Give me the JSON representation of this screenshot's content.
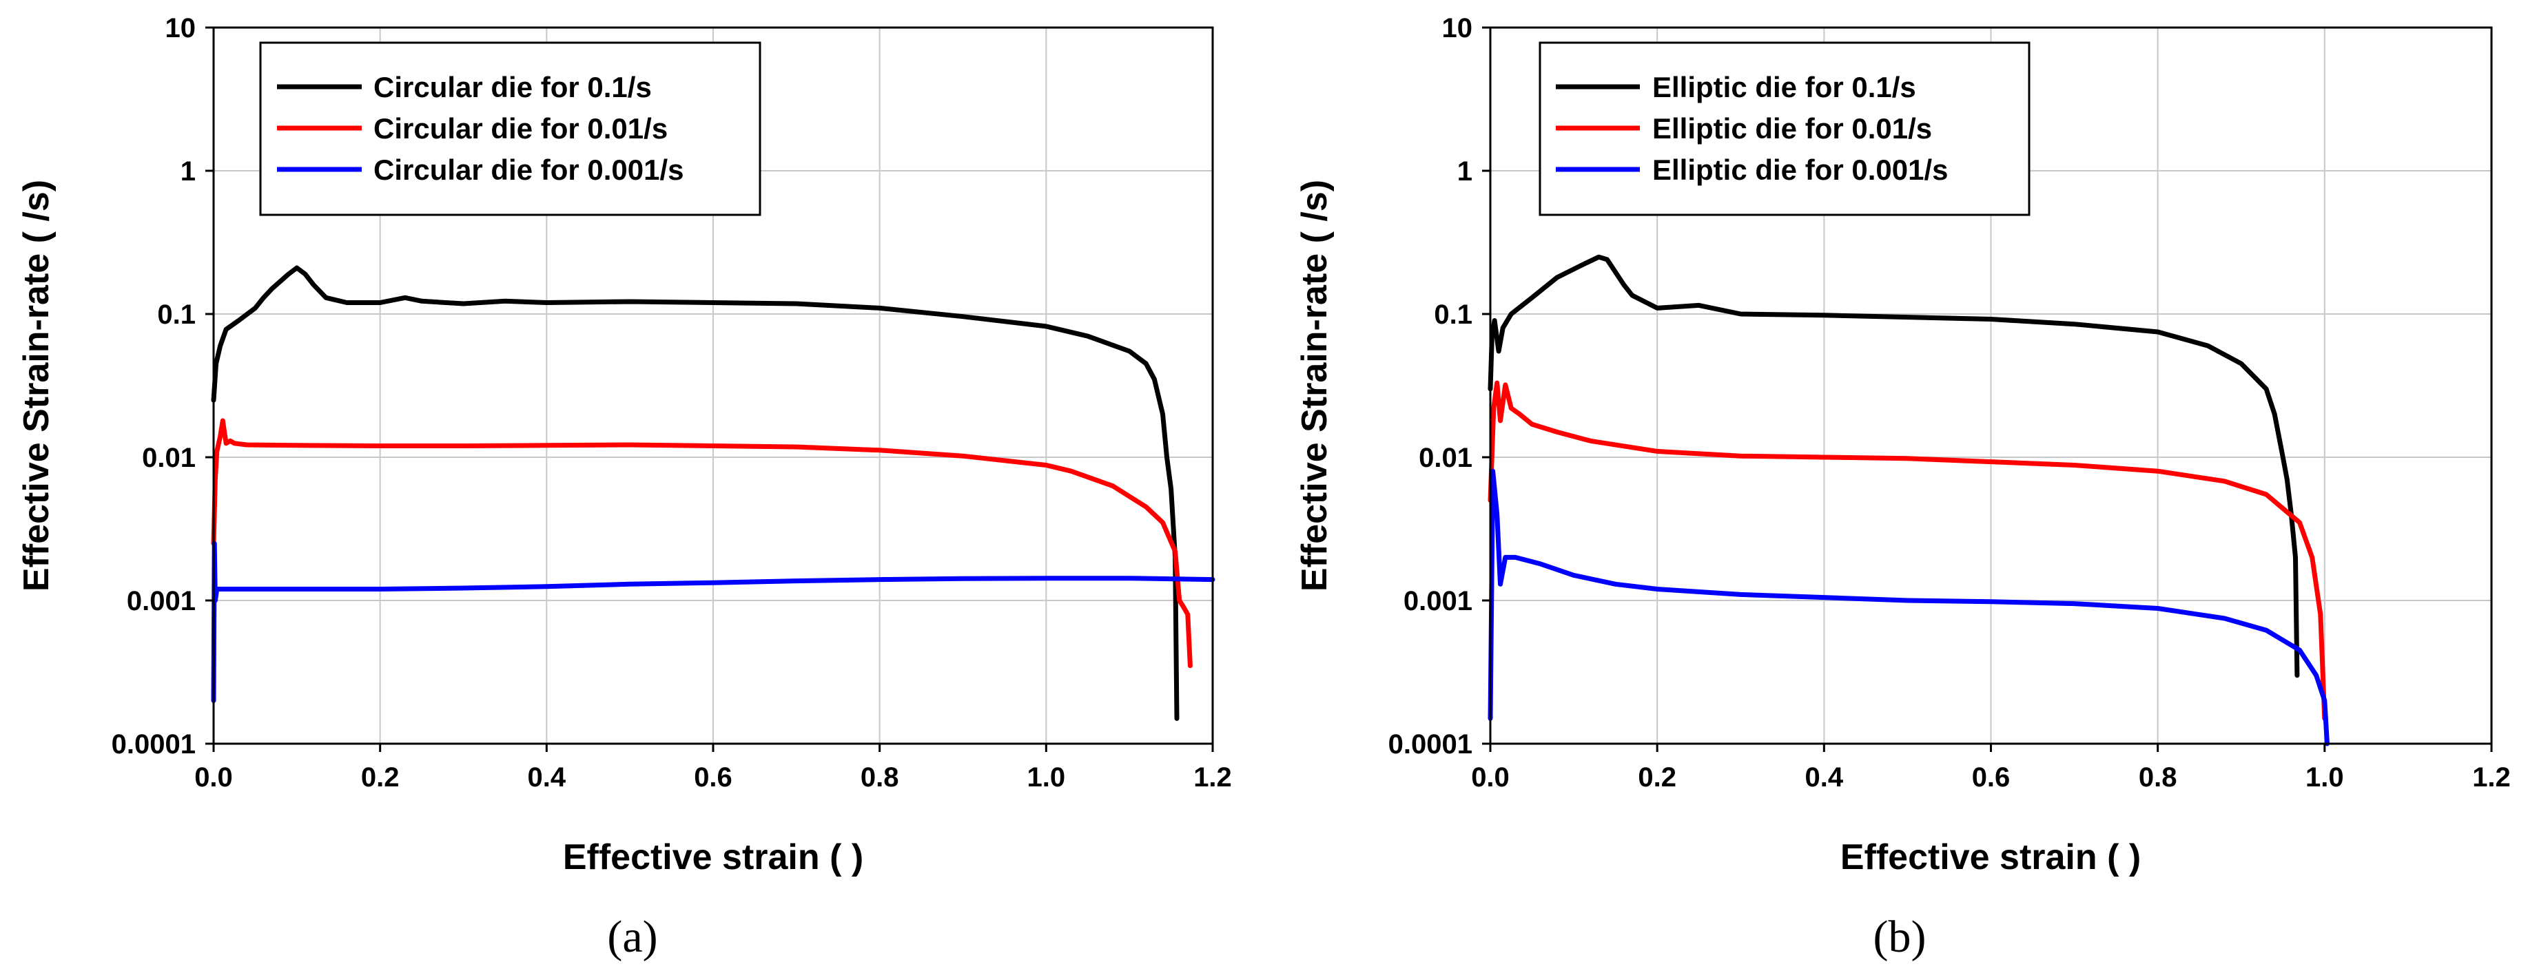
{
  "chart_data": [
    {
      "type": "line",
      "panel": "a",
      "caption": "(a)",
      "xlabel": "Effective strain (   )",
      "ylabel": "Effective Strain-rate ( /s)",
      "xlim": [
        0,
        1.2
      ],
      "ylim": [
        0.0001,
        10
      ],
      "yscale": "log",
      "grid": true,
      "legend_position": "top-left",
      "x_ticks": [
        "0.0",
        "0.2",
        "0.4",
        "0.6",
        "0.8",
        "1.0",
        "1.2"
      ],
      "y_ticks": [
        "0.0001",
        "0.001",
        "0.01",
        "0.1",
        "1",
        "10"
      ],
      "series": [
        {
          "name": "Circular die for 0.1/s",
          "color": "#000000",
          "points": [
            [
              0,
              0.025
            ],
            [
              0.003,
              0.045
            ],
            [
              0.008,
              0.06
            ],
            [
              0.015,
              0.078
            ],
            [
              0.03,
              0.09
            ],
            [
              0.05,
              0.11
            ],
            [
              0.06,
              0.13
            ],
            [
              0.07,
              0.15
            ],
            [
              0.09,
              0.19
            ],
            [
              0.1,
              0.21
            ],
            [
              0.11,
              0.19
            ],
            [
              0.12,
              0.16
            ],
            [
              0.135,
              0.13
            ],
            [
              0.16,
              0.12
            ],
            [
              0.2,
              0.12
            ],
            [
              0.23,
              0.13
            ],
            [
              0.25,
              0.123
            ],
            [
              0.3,
              0.118
            ],
            [
              0.35,
              0.123
            ],
            [
              0.4,
              0.12
            ],
            [
              0.5,
              0.122
            ],
            [
              0.6,
              0.12
            ],
            [
              0.7,
              0.118
            ],
            [
              0.8,
              0.11
            ],
            [
              0.9,
              0.096
            ],
            [
              1.0,
              0.082
            ],
            [
              1.05,
              0.07
            ],
            [
              1.1,
              0.055
            ],
            [
              1.12,
              0.045
            ],
            [
              1.13,
              0.035
            ],
            [
              1.14,
              0.02
            ],
            [
              1.145,
              0.01
            ],
            [
              1.15,
              0.006
            ],
            [
              1.155,
              0.002
            ],
            [
              1.157,
              0.00015
            ]
          ]
        },
        {
          "name": "Circular die for 0.01/s",
          "color": "#ff0000",
          "points": [
            [
              0,
              0.0025
            ],
            [
              0.002,
              0.007
            ],
            [
              0.004,
              0.011
            ],
            [
              0.008,
              0.014
            ],
            [
              0.011,
              0.018
            ],
            [
              0.015,
              0.0125
            ],
            [
              0.02,
              0.013
            ],
            [
              0.025,
              0.0125
            ],
            [
              0.04,
              0.0122
            ],
            [
              0.1,
              0.0121
            ],
            [
              0.2,
              0.012
            ],
            [
              0.3,
              0.012
            ],
            [
              0.4,
              0.0121
            ],
            [
              0.5,
              0.0122
            ],
            [
              0.6,
              0.012
            ],
            [
              0.7,
              0.0118
            ],
            [
              0.8,
              0.0112
            ],
            [
              0.9,
              0.0102
            ],
            [
              1.0,
              0.0088
            ],
            [
              1.03,
              0.008
            ],
            [
              1.08,
              0.0063
            ],
            [
              1.12,
              0.0045
            ],
            [
              1.14,
              0.0035
            ],
            [
              1.155,
              0.0022
            ],
            [
              1.16,
              0.001
            ],
            [
              1.165,
              0.0009
            ],
            [
              1.17,
              0.0008
            ],
            [
              1.173,
              0.00035
            ]
          ]
        },
        {
          "name": "Circular die for 0.001/s",
          "color": "#0000ff",
          "points": [
            [
              0,
              0.0002
            ],
            [
              0.001,
              0.0025
            ],
            [
              0.002,
              0.001
            ],
            [
              0.004,
              0.0012
            ],
            [
              0.02,
              0.0012
            ],
            [
              0.1,
              0.0012
            ],
            [
              0.2,
              0.0012
            ],
            [
              0.3,
              0.00122
            ],
            [
              0.4,
              0.00125
            ],
            [
              0.5,
              0.0013
            ],
            [
              0.6,
              0.00133
            ],
            [
              0.7,
              0.00137
            ],
            [
              0.8,
              0.0014
            ],
            [
              0.9,
              0.00142
            ],
            [
              1.0,
              0.00143
            ],
            [
              1.1,
              0.00143
            ],
            [
              1.2,
              0.0014
            ]
          ]
        }
      ]
    },
    {
      "type": "line",
      "panel": "b",
      "caption": "(b)",
      "xlabel": "Effective strain (   )",
      "ylabel": "Effective Strain-rate ( /s)",
      "xlim": [
        0,
        1.2
      ],
      "ylim": [
        0.0001,
        10
      ],
      "yscale": "log",
      "grid": true,
      "legend_position": "top-left",
      "x_ticks": [
        "0.0",
        "0.2",
        "0.4",
        "0.6",
        "0.8",
        "1.0",
        "1.2"
      ],
      "y_ticks": [
        "0.0001",
        "0.001",
        "0.01",
        "0.1",
        "1",
        "10"
      ],
      "series": [
        {
          "name": "Elliptic die for 0.1/s",
          "color": "#000000",
          "points": [
            [
              0,
              0.03
            ],
            [
              0.002,
              0.07
            ],
            [
              0.005,
              0.09
            ],
            [
              0.01,
              0.055
            ],
            [
              0.015,
              0.08
            ],
            [
              0.025,
              0.1
            ],
            [
              0.05,
              0.13
            ],
            [
              0.08,
              0.18
            ],
            [
              0.11,
              0.22
            ],
            [
              0.13,
              0.25
            ],
            [
              0.14,
              0.24
            ],
            [
              0.16,
              0.16
            ],
            [
              0.17,
              0.135
            ],
            [
              0.2,
              0.11
            ],
            [
              0.25,
              0.115
            ],
            [
              0.3,
              0.1
            ],
            [
              0.4,
              0.098
            ],
            [
              0.5,
              0.095
            ],
            [
              0.6,
              0.092
            ],
            [
              0.7,
              0.085
            ],
            [
              0.8,
              0.075
            ],
            [
              0.86,
              0.06
            ],
            [
              0.9,
              0.045
            ],
            [
              0.93,
              0.03
            ],
            [
              0.94,
              0.02
            ],
            [
              0.95,
              0.01
            ],
            [
              0.955,
              0.007
            ],
            [
              0.96,
              0.004
            ],
            [
              0.965,
              0.002
            ],
            [
              0.967,
              0.0003
            ]
          ]
        },
        {
          "name": "Elliptic die for 0.01/s",
          "color": "#ff0000",
          "points": [
            [
              0,
              0.005
            ],
            [
              0.004,
              0.022
            ],
            [
              0.008,
              0.033
            ],
            [
              0.012,
              0.018
            ],
            [
              0.018,
              0.032
            ],
            [
              0.025,
              0.022
            ],
            [
              0.035,
              0.02
            ],
            [
              0.05,
              0.017
            ],
            [
              0.08,
              0.015
            ],
            [
              0.12,
              0.013
            ],
            [
              0.2,
              0.011
            ],
            [
              0.3,
              0.0102
            ],
            [
              0.4,
              0.01
            ],
            [
              0.5,
              0.0098
            ],
            [
              0.6,
              0.0093
            ],
            [
              0.7,
              0.0088
            ],
            [
              0.8,
              0.008
            ],
            [
              0.88,
              0.0068
            ],
            [
              0.93,
              0.0055
            ],
            [
              0.97,
              0.0035
            ],
            [
              0.985,
              0.002
            ],
            [
              0.995,
              0.0008
            ],
            [
              1.0,
              0.00015
            ]
          ]
        },
        {
          "name": "Elliptic die for 0.001/s",
          "color": "#0000ff",
          "points": [
            [
              0,
              0.00015
            ],
            [
              0.003,
              0.008
            ],
            [
              0.008,
              0.004
            ],
            [
              0.012,
              0.0013
            ],
            [
              0.018,
              0.002
            ],
            [
              0.03,
              0.002
            ],
            [
              0.06,
              0.0018
            ],
            [
              0.1,
              0.0015
            ],
            [
              0.15,
              0.0013
            ],
            [
              0.2,
              0.0012
            ],
            [
              0.3,
              0.0011
            ],
            [
              0.4,
              0.00105
            ],
            [
              0.5,
              0.001
            ],
            [
              0.6,
              0.00098
            ],
            [
              0.7,
              0.00095
            ],
            [
              0.8,
              0.00088
            ],
            [
              0.88,
              0.00075
            ],
            [
              0.93,
              0.00062
            ],
            [
              0.97,
              0.00045
            ],
            [
              0.99,
              0.0003
            ],
            [
              1.0,
              0.0002
            ],
            [
              1.003,
              0.0001
            ]
          ]
        }
      ]
    }
  ]
}
